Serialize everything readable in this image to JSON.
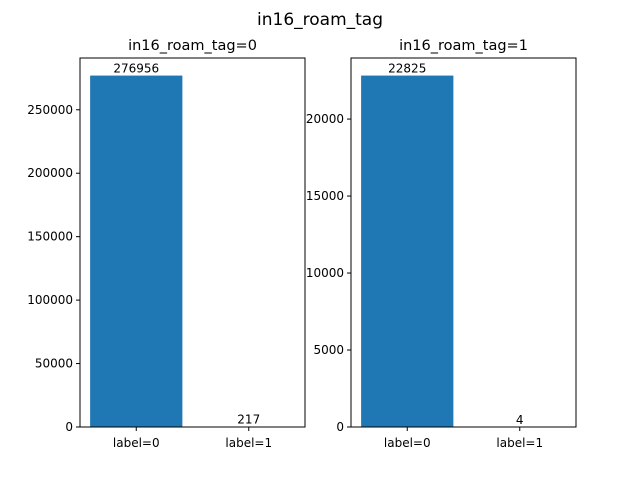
{
  "suptitle": "in16_roam_tag",
  "colors": {
    "bar": "#1f77b4",
    "axis": "#000000"
  },
  "chart_data": [
    {
      "type": "bar",
      "title": "in16_roam_tag=0",
      "categories": [
        "label=0",
        "label=1"
      ],
      "values": [
        276956,
        217
      ],
      "value_labels": [
        "276956",
        "217"
      ],
      "ylim": [
        0,
        290804
      ],
      "yticks": [
        0,
        50000,
        100000,
        150000,
        200000,
        250000
      ],
      "ytick_labels": [
        "0",
        "50000",
        "100000",
        "150000",
        "200000",
        "250000"
      ],
      "xlabel": "",
      "ylabel": "",
      "grid": false
    },
    {
      "type": "bar",
      "title": "in16_roam_tag=1",
      "categories": [
        "label=0",
        "label=1"
      ],
      "values": [
        22825,
        4
      ],
      "value_labels": [
        "22825",
        "4"
      ],
      "ylim": [
        0,
        23966
      ],
      "yticks": [
        0,
        5000,
        10000,
        15000,
        20000
      ],
      "ytick_labels": [
        "0",
        "5000",
        "10000",
        "15000",
        "20000"
      ],
      "xlabel": "",
      "ylabel": "",
      "grid": false
    }
  ]
}
